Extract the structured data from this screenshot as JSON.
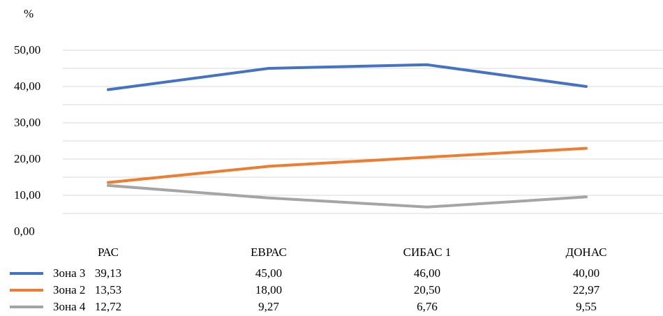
{
  "chart_data": {
    "type": "line",
    "unit_label": "%",
    "categories": [
      "РАС",
      "ЕВРАС",
      "СИБАС 1",
      "ДОНАС"
    ],
    "ylim": [
      0,
      50
    ],
    "yticks": [
      "0,00",
      "10,00",
      "20,00",
      "30,00",
      "40,00",
      "50,00"
    ],
    "grid": true,
    "legend": "data table below chart",
    "series": [
      {
        "name": "Зона 3",
        "color": "#4472c4",
        "values": [
          39.13,
          45.0,
          46.0,
          40.0
        ],
        "labels": [
          "39,13",
          "45,00",
          "46,00",
          "40,00"
        ]
      },
      {
        "name": "Зона 2",
        "color": "#ed7d31",
        "values": [
          13.53,
          18.0,
          20.5,
          22.97
        ],
        "labels": [
          "13,53",
          "18,00",
          "20,50",
          "22,97"
        ]
      },
      {
        "name": "Зона 4",
        "color": "#a5a5a5",
        "values": [
          12.72,
          9.27,
          6.76,
          9.55
        ],
        "labels": [
          "12,72",
          "9,27",
          "6,76",
          "9,55"
        ]
      }
    ]
  }
}
